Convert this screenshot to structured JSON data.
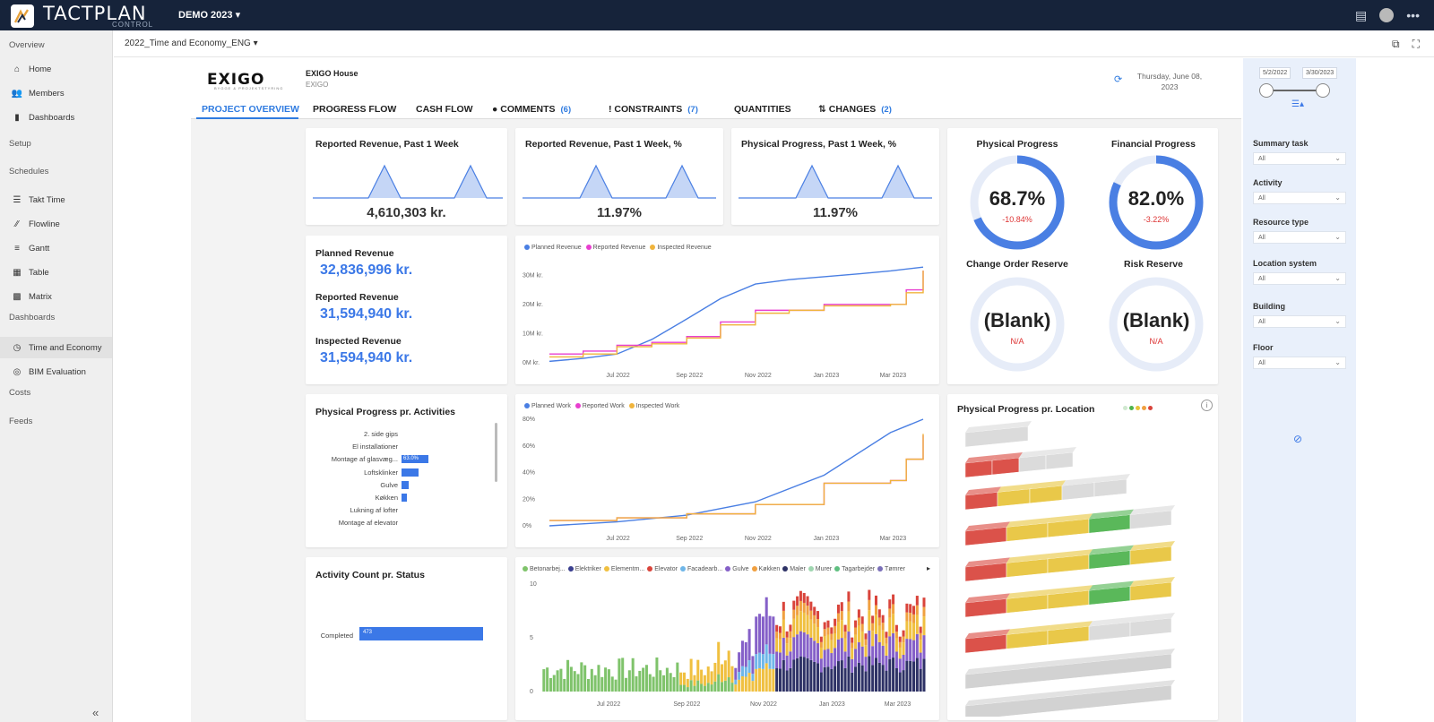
{
  "app": {
    "brand": "TACTPLAN",
    "brand_sub": "CONTROL",
    "project": "DEMO 2023 ▾"
  },
  "sidebar": {
    "sections": [
      "Overview",
      "Setup",
      "Schedules",
      "Dashboards",
      "Costs",
      "Feeds"
    ],
    "items": [
      {
        "label": "Home",
        "icon": "home-icon"
      },
      {
        "label": "Members",
        "icon": "members-icon"
      },
      {
        "label": "Dashboards",
        "icon": "dashboards-icon"
      },
      {
        "label": "Takt Time",
        "icon": "takt-time-icon"
      },
      {
        "label": "Flowline",
        "icon": "flowline-icon"
      },
      {
        "label": "Gantt",
        "icon": "gantt-icon"
      },
      {
        "label": "Table",
        "icon": "table-icon"
      },
      {
        "label": "Matrix",
        "icon": "matrix-icon"
      },
      {
        "label": "Time and Economy",
        "icon": "clock-icon"
      },
      {
        "label": "BIM Evaluation",
        "icon": "eye-icon"
      }
    ],
    "collapse": "«"
  },
  "subheader": {
    "report": "2022_Time and Economy_ENG ▾"
  },
  "report": {
    "logo": "EXIGO",
    "logo_sub": "BYGGE & PROJEKTSTYRING",
    "house_title": "EXIGO House",
    "house_sub": "EXIGO",
    "date": "Thursday, June 08, 2023",
    "tabs": [
      {
        "label": "PROJECT OVERVIEW",
        "count": ""
      },
      {
        "label": "PROGRESS FLOW",
        "count": ""
      },
      {
        "label": "CASH FLOW",
        "count": ""
      },
      {
        "label": "COMMENTS",
        "count": "(6)"
      },
      {
        "label": "CONSTRAINTS",
        "count": "(7)"
      },
      {
        "label": "QUANTITIES",
        "count": ""
      },
      {
        "label": "CHANGES",
        "count": "(2)"
      }
    ]
  },
  "kpis": [
    {
      "title": "Reported Revenue, Past 1 Week",
      "value": "4,610,303 kr."
    },
    {
      "title": "Reported Revenue, Past 1 Week, %",
      "value": "11.97%"
    },
    {
      "title": "Physical Progress, Past 1 Week, %",
      "value": "11.97%"
    }
  ],
  "revenue": {
    "planned_label": "Planned Revenue",
    "planned_value": "32,836,996 kr.",
    "reported_label": "Reported Revenue",
    "reported_value": "31,594,940 kr.",
    "inspected_label": "Inspected Revenue",
    "inspected_value": "31,594,940 kr."
  },
  "gauges": [
    {
      "title": "Physical Progress",
      "value": "68.7%",
      "delta": "-10.84%",
      "fraction": 0.687,
      "delta_fraction": 0.108
    },
    {
      "title": "Financial Progress",
      "value": "82.0%",
      "delta": "-3.22%",
      "fraction": 0.82,
      "delta_fraction": 0.032
    },
    {
      "title": "Change Order Reserve",
      "value": "(Blank)",
      "delta": "N/A"
    },
    {
      "title": "Risk Reserve",
      "value": "(Blank)",
      "delta": "N/A"
    }
  ],
  "colors": {
    "planned": "#4a7fe3",
    "reported": "#e83fcf",
    "inspected": "#f0b43c",
    "accent": "#2f7be0",
    "gauge_fill": "#4a7fe3",
    "gauge_delta": "#d9443b",
    "gauge_empty": "#e6ecf8"
  },
  "activities": {
    "title": "Physical Progress pr. Activities",
    "rows": [
      {
        "label": "2. side gips",
        "value": 0
      },
      {
        "label": "El installationer",
        "value": 0
      },
      {
        "label": "Montage af glasvæg...",
        "value": 63.0,
        "value_label": "63.0%"
      },
      {
        "label": "Loftsklinker",
        "value": 40
      },
      {
        "label": "Gulve",
        "value": 17
      },
      {
        "label": "Køkken",
        "value": 13
      },
      {
        "label": "Lukning af lofter",
        "value": 0
      },
      {
        "label": "Montage af elevator",
        "value": 0
      }
    ]
  },
  "activity_count": {
    "title": "Activity Count pr. Status",
    "rows": [
      {
        "label": "Completed",
        "value": 473,
        "value_label": "473"
      }
    ]
  },
  "location": {
    "title": "Physical Progress pr. Location"
  },
  "filters": {
    "date_from": "5/2/2022",
    "date_to": "3/30/2023",
    "items": [
      {
        "label": "Summary task",
        "value": "All"
      },
      {
        "label": "Activity",
        "value": "All"
      },
      {
        "label": "Resource type",
        "value": "All"
      },
      {
        "label": "Location system",
        "value": "All"
      },
      {
        "label": "Building",
        "value": "All"
      },
      {
        "label": "Floor",
        "value": "All"
      }
    ]
  },
  "chart_data": [
    {
      "type": "line",
      "title": "",
      "series": [
        {
          "name": "Planned Revenue",
          "x": [
            "2022-05-02",
            "2022-06-01",
            "2022-07-01",
            "2022-08-01",
            "2022-09-01",
            "2022-10-01",
            "2022-11-01",
            "2022-12-01",
            "2023-01-01",
            "2023-02-01",
            "2023-03-01",
            "2023-03-30"
          ],
          "y": [
            0.5,
            1.5,
            3,
            8,
            15,
            22,
            27,
            28.5,
            29.5,
            30.5,
            31.5,
            32.8
          ]
        },
        {
          "name": "Reported Revenue",
          "x": [
            "2022-05-02",
            "2022-06-01",
            "2022-07-01",
            "2022-08-01",
            "2022-09-01",
            "2022-10-01",
            "2022-11-01",
            "2022-12-01",
            "2023-01-01",
            "2023-02-01",
            "2023-03-01",
            "2023-03-15",
            "2023-03-30"
          ],
          "y": [
            3,
            4,
            6,
            7,
            9,
            14,
            18,
            18,
            20,
            20,
            20,
            25,
            31.6
          ]
        },
        {
          "name": "Inspected Revenue",
          "x": [
            "2022-05-02",
            "2022-06-01",
            "2022-07-01",
            "2022-08-01",
            "2022-09-01",
            "2022-10-01",
            "2022-11-01",
            "2022-12-01",
            "2023-01-01",
            "2023-02-01",
            "2023-03-01",
            "2023-03-15",
            "2023-03-30"
          ],
          "y": [
            2,
            3,
            5.5,
            6.5,
            8.5,
            13,
            17,
            18,
            19.5,
            19.5,
            20,
            24,
            31.6
          ]
        }
      ],
      "ylim": [
        0,
        35
      ],
      "yticks": [
        "0M kr.",
        "10M kr.",
        "20M kr.",
        "30M kr."
      ],
      "xticks": [
        "Jul 2022",
        "Sep 2022",
        "Nov 2022",
        "Jan 2023",
        "Mar 2023"
      ]
    },
    {
      "type": "line",
      "title": "",
      "series": [
        {
          "name": "Planned Work",
          "x": [
            "2022-05-02",
            "2022-07-01",
            "2022-09-01",
            "2022-11-01",
            "2023-01-01",
            "2023-03-01",
            "2023-03-30"
          ],
          "y": [
            0,
            3,
            8,
            18,
            38,
            70,
            80
          ]
        },
        {
          "name": "Reported Work",
          "x": [
            "2022-05-02",
            "2022-07-01",
            "2022-09-01",
            "2022-11-01",
            "2023-01-01",
            "2023-03-01",
            "2023-03-15",
            "2023-03-30"
          ],
          "y": [
            4,
            6,
            9,
            16,
            32,
            34,
            50,
            68
          ]
        },
        {
          "name": "Inspected Work",
          "x": [
            "2022-05-02",
            "2022-07-01",
            "2022-09-01",
            "2022-11-01",
            "2023-01-01",
            "2023-03-01",
            "2023-03-15",
            "2023-03-30"
          ],
          "y": [
            4,
            6,
            9,
            16,
            32,
            34,
            50,
            69
          ]
        }
      ],
      "ylim": [
        0,
        80
      ],
      "yticks": [
        "0%",
        "20%",
        "40%",
        "60%",
        "80%"
      ],
      "xticks": [
        "Jul 2022",
        "Sep 2022",
        "Nov 2022",
        "Jan 2023",
        "Mar 2023"
      ]
    },
    {
      "type": "bar",
      "title": "",
      "stacked": true,
      "legend": [
        "Betonarbej...",
        "Elektriker",
        "Elementm...",
        "Elevator",
        "Facadearb...",
        "Gulve",
        "Køkken",
        "Maler",
        "Murer",
        "Tagarbejder",
        "Tømrer"
      ],
      "legend_colors": [
        "#7fc36b",
        "#3a3f8f",
        "#f0c040",
        "#d9443b",
        "#6fb6e8",
        "#8560c8",
        "#f0a040",
        "#2e3266",
        "#9fd6b0",
        "#5fbf80",
        "#7a6fb8"
      ],
      "ylim": [
        0,
        10
      ],
      "yticks": [
        "0",
        "5",
        "10"
      ],
      "xticks": [
        "Jul 2022",
        "Sep 2022",
        "Nov 2022",
        "Jan 2023",
        "Mar 2023"
      ]
    }
  ]
}
